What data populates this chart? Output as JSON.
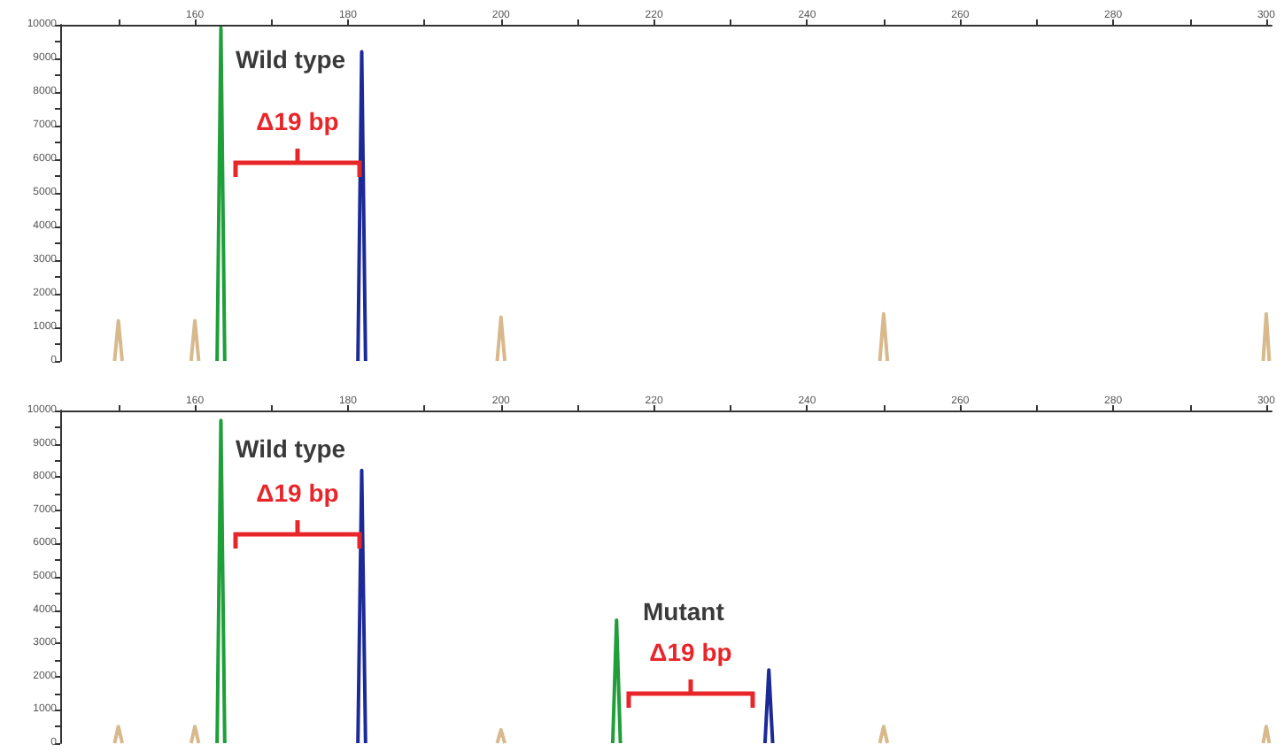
{
  "chart_data": [
    {
      "type": "line",
      "xlim": [
        142.4,
        300.7
      ],
      "xticks": [
        {
          "value": 150,
          "label": null
        },
        160,
        {
          "value": 170,
          "label": null
        },
        180,
        {
          "value": 190,
          "label": null
        },
        200,
        {
          "value": 210,
          "label": null
        },
        220,
        {
          "value": 230,
          "label": null
        },
        240,
        {
          "value": 250,
          "label": null
        },
        260,
        {
          "value": 270,
          "label": null
        },
        280,
        {
          "value": 290,
          "label": null
        },
        300
      ],
      "ylim": [
        0,
        10000
      ],
      "yticks": [
        0,
        {
          "value": 500,
          "label": null
        },
        1000,
        {
          "value": 1500,
          "label": null
        },
        2000,
        {
          "value": 2500,
          "label": null
        },
        3000,
        {
          "value": 3500,
          "label": null
        },
        4000,
        {
          "value": 4500,
          "label": null
        },
        5000,
        {
          "value": 5500,
          "label": null
        },
        6000,
        {
          "value": 6500,
          "label": null
        },
        7000,
        {
          "value": 7500,
          "label": null
        },
        8000,
        {
          "value": 8500,
          "label": null
        },
        9000,
        {
          "value": 9500,
          "label": null
        },
        10000
      ],
      "marker": "none",
      "series": [
        {
          "color": "#d8b98c",
          "x": [
            149.5,
            150,
            150.5,
            155,
            159.5,
            160,
            160.5,
            180,
            199.5,
            200,
            200.5,
            225,
            249.5,
            250,
            250.5,
            275,
            299.6,
            300,
            300.4
          ],
          "values": [
            0,
            1200,
            0,
            null,
            0,
            1200,
            0,
            null,
            0,
            1300,
            0,
            null,
            0,
            1400,
            0,
            null,
            0,
            1400,
            0
          ]
        },
        {
          "color": "#1f9e3a",
          "x": [
            162.9,
            163.4,
            163.9
          ],
          "values": [
            0,
            9900,
            0
          ]
        },
        {
          "color": "#1c2a98",
          "x": [
            181.3,
            181.8,
            182.3
          ],
          "values": [
            0,
            9200,
            0
          ]
        }
      ],
      "annotations": [
        "Wild type",
        "Δ19 bp"
      ]
    },
    {
      "type": "line",
      "xlim": [
        142.4,
        300.7
      ],
      "xticks": [
        {
          "value": 150,
          "label": null
        },
        160,
        {
          "value": 170,
          "label": null
        },
        180,
        {
          "value": 190,
          "label": null
        },
        200,
        {
          "value": 210,
          "label": null
        },
        220,
        {
          "value": 230,
          "label": null
        },
        240,
        {
          "value": 250,
          "label": null
        },
        260,
        {
          "value": 270,
          "label": null
        },
        280,
        {
          "value": 290,
          "label": null
        },
        300
      ],
      "ylim": [
        0,
        10000
      ],
      "yticks": [
        0,
        {
          "value": 500,
          "label": null
        },
        1000,
        {
          "value": 1500,
          "label": null
        },
        2000,
        {
          "value": 2500,
          "label": null
        },
        3000,
        {
          "value": 3500,
          "label": null
        },
        4000,
        {
          "value": 4500,
          "label": null
        },
        5000,
        {
          "value": 5500,
          "label": null
        },
        6000,
        {
          "value": 6500,
          "label": null
        },
        7000,
        {
          "value": 7500,
          "label": null
        },
        8000,
        {
          "value": 8500,
          "label": null
        },
        9000,
        {
          "value": 9500,
          "label": null
        },
        10000
      ],
      "marker": "none",
      "series": [
        {
          "color": "#d8b98c",
          "x": [
            149.5,
            150,
            150.5,
            155,
            159.5,
            160,
            160.5,
            180,
            199.5,
            200,
            200.5,
            225,
            249.5,
            250,
            250.5,
            275,
            299.6,
            300,
            300.4
          ],
          "values": [
            0,
            500,
            0,
            null,
            0,
            500,
            0,
            null,
            0,
            400,
            0,
            null,
            0,
            500,
            0,
            null,
            0,
            500,
            0
          ]
        },
        {
          "color": "#1f9e3a",
          "x": [
            162.9,
            163.4,
            163.9,
            190,
            214.6,
            215.1,
            215.6
          ],
          "values": [
            0,
            9700,
            0,
            null,
            0,
            3700,
            0
          ]
        },
        {
          "color": "#1c2a98",
          "x": [
            181.3,
            181.8,
            182.3,
            210,
            234.5,
            235,
            235.5
          ],
          "values": [
            0,
            8200,
            0,
            null,
            0,
            2200,
            0
          ]
        }
      ],
      "annotations": [
        "Wild type",
        "Δ19 bp",
        "Mutant",
        "Δ19 bp"
      ]
    }
  ]
}
